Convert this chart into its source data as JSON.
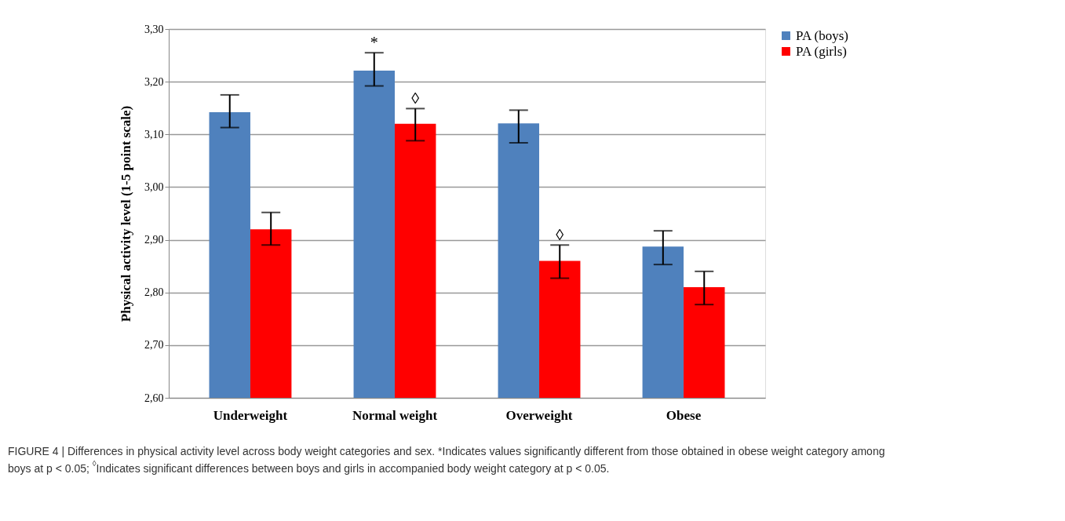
{
  "chart_data": {
    "type": "bar",
    "ylabel": "Physical activity level (1-5 point scale)",
    "categories": [
      "Underweight",
      "Normal weight",
      "Overweight",
      "Obese"
    ],
    "series": [
      {
        "name": "PA (boys)",
        "color": "#4f81bd",
        "values": [
          3.142,
          3.221,
          3.121,
          2.887
        ],
        "errors": [
          [
            3.113,
            3.175
          ],
          [
            3.192,
            3.255
          ],
          [
            3.084,
            3.146
          ],
          [
            2.853,
            2.917
          ]
        ]
      },
      {
        "name": "PA (girls)",
        "color": "#ff0000",
        "values": [
          2.92,
          3.12,
          2.86,
          2.81
        ],
        "errors": [
          [
            2.89,
            2.952
          ],
          [
            3.088,
            3.149
          ],
          [
            2.827,
            2.89
          ],
          [
            2.777,
            2.84
          ]
        ]
      }
    ],
    "ylim": [
      2.6,
      3.3
    ],
    "yticks": [
      {
        "value": 2.6,
        "label": "2,60"
      },
      {
        "value": 2.7,
        "label": "2,70"
      },
      {
        "value": 2.8,
        "label": "2,80"
      },
      {
        "value": 2.9,
        "label": "2,90"
      },
      {
        "value": 3.0,
        "label": "3,00"
      },
      {
        "value": 3.1,
        "label": "3,10"
      },
      {
        "value": 3.2,
        "label": "3,20"
      },
      {
        "value": 3.3,
        "label": "3,30"
      }
    ],
    "grid": "y",
    "legend": "right",
    "annotations": [
      {
        "text": "*",
        "x": "Normal weight",
        "y": 3.221
      },
      {
        "text": "◊",
        "x": "Normal weight",
        "y": 3.12
      },
      {
        "text": "◊",
        "x": "Overweight",
        "y": 2.86
      },
      "FIGURE 4 | Differences in physical activity level across body weight categories and sex. *Indicates values significantly different from those obtained in obese weight category among boys at p < 0.05; $^{◊}$Indicates significant differences between boys and girls in accompanied body weight category at p < 0.05."
    ]
  }
}
